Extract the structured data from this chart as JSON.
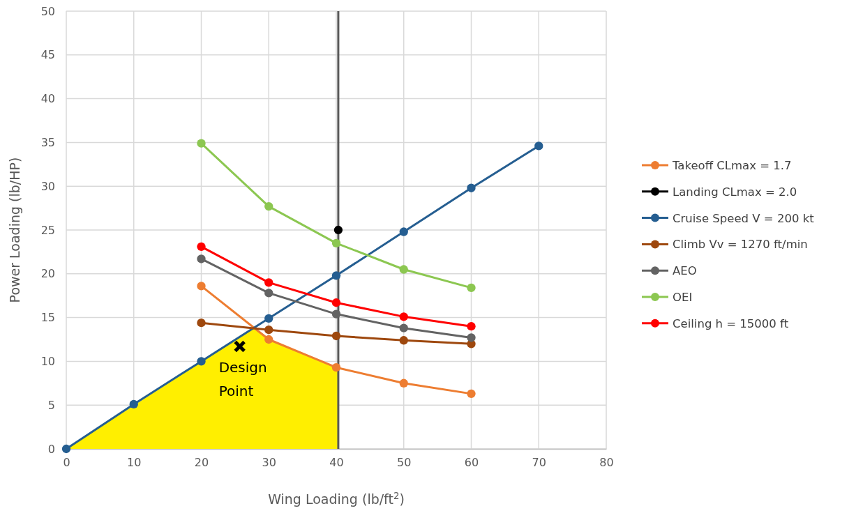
{
  "chart_data": {
    "type": "line",
    "xlabel": "Wing Loading (lb/ft$^{2}$)",
    "ylabel": "Power Loading (lb/HP)",
    "xlim": [
      0,
      80
    ],
    "xticks": [
      0,
      10,
      20,
      30,
      40,
      50,
      60,
      70,
      80
    ],
    "ylim": [
      0,
      50
    ],
    "yticks": [
      0,
      5,
      10,
      15,
      20,
      25,
      30,
      35,
      40,
      45,
      50
    ],
    "grid": true,
    "legend": "right",
    "marker": "circle",
    "series": [
      {
        "type": "area",
        "color": "#ffef00",
        "marker": "none",
        "x": [
          0,
          27.8,
          30,
          40,
          40.3
        ],
        "values": [
          0,
          13.8,
          12.5,
          9.3,
          9.2
        ]
      },
      {
        "name": "Takeoff CLmax = 1.7",
        "color": "#ed7d31",
        "x": [
          20,
          30,
          40,
          50,
          60
        ],
        "values": [
          18.6,
          12.5,
          9.3,
          7.5,
          6.3
        ]
      },
      {
        "name": "Landing CLmax = 2.0",
        "color": "#000000",
        "x": [
          40.3
        ],
        "values": [
          25
        ]
      },
      {
        "name": "Cruise Speed V = 200 kt",
        "color": "#255e91",
        "x": [
          0,
          10,
          20,
          30,
          40,
          50,
          60,
          70
        ],
        "values": [
          0,
          5.1,
          10,
          14.9,
          19.8,
          24.8,
          29.8,
          34.6
        ]
      },
      {
        "name": "Climb Vv = 1270 ft/min",
        "color": "#9e480e",
        "x": [
          20,
          30,
          40,
          50,
          60
        ],
        "values": [
          14.4,
          13.6,
          12.9,
          12.4,
          12
        ]
      },
      {
        "name": "AEO",
        "color": "#636363",
        "x": [
          20,
          30,
          40,
          50,
          60
        ],
        "values": [
          21.7,
          17.8,
          15.4,
          13.8,
          12.7
        ]
      },
      {
        "name": "OEI",
        "color": "#8cc751",
        "x": [
          20,
          30,
          40,
          50,
          60
        ],
        "values": [
          34.9,
          27.7,
          23.5,
          20.5,
          18.4
        ]
      },
      {
        "name": "Ceiling h = 15000 ft",
        "color": "#ff0000",
        "x": [
          20,
          30,
          40,
          50,
          60
        ],
        "values": [
          23.1,
          19,
          16.7,
          15.1,
          14
        ]
      },
      {
        "type": "scatter",
        "color": "#000000",
        "marker": "cross",
        "x": [
          25.7
        ],
        "values": [
          11.7
        ]
      }
    ],
    "ref_lines": [
      {
        "axis": "x",
        "value": 40.3,
        "color": "#595959"
      }
    ],
    "annotations": [
      {
        "text": "Design Point",
        "x": 25.7,
        "y": 11.7
      }
    ]
  }
}
